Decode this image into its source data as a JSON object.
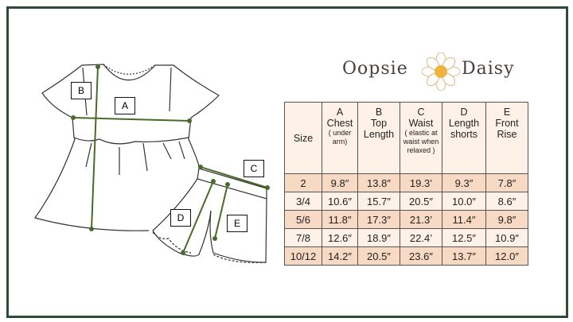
{
  "brand": {
    "word1": "Oopsie",
    "word2": "Daisy"
  },
  "labels": {
    "a": "A",
    "b": "B",
    "c": "C",
    "d": "D",
    "e": "E"
  },
  "colors": {
    "frame": "#2f4a3c",
    "arrow": "#4a6a2a",
    "header_bg": "#fdf1e8",
    "row_dark": "#f8d9c4",
    "row_light": "#fdf1e8"
  },
  "table": {
    "headers": [
      {
        "letter": "",
        "title": "Size",
        "note": ""
      },
      {
        "letter": "A",
        "title": "Chest",
        "note": "( under arm)"
      },
      {
        "letter": "B",
        "title": "Top Length",
        "note": ""
      },
      {
        "letter": "C",
        "title": "Waist",
        "note": "( elastic at waist when relaxed )"
      },
      {
        "letter": "D",
        "title": "Length shorts",
        "note": ""
      },
      {
        "letter": "E",
        "title": "Front Rise",
        "note": ""
      }
    ],
    "rows": [
      [
        "2",
        "9.8″",
        "13.8″",
        "19.3’",
        "9.3″",
        "7.8″"
      ],
      [
        "3/4",
        "10.6″",
        "15.7″",
        "20.5″",
        "10.0″",
        "8.6″"
      ],
      [
        "5/6",
        "11.8″",
        "17.3″",
        "21.3’",
        "11.4″",
        "9.8″"
      ],
      [
        "7/8",
        "12.6″",
        "18.9″",
        "22.4’",
        "12.5″",
        "10.9″"
      ],
      [
        "10/12",
        "14.2″",
        "20.5″",
        "23.6″",
        "13.7″",
        "12.0″"
      ]
    ]
  }
}
